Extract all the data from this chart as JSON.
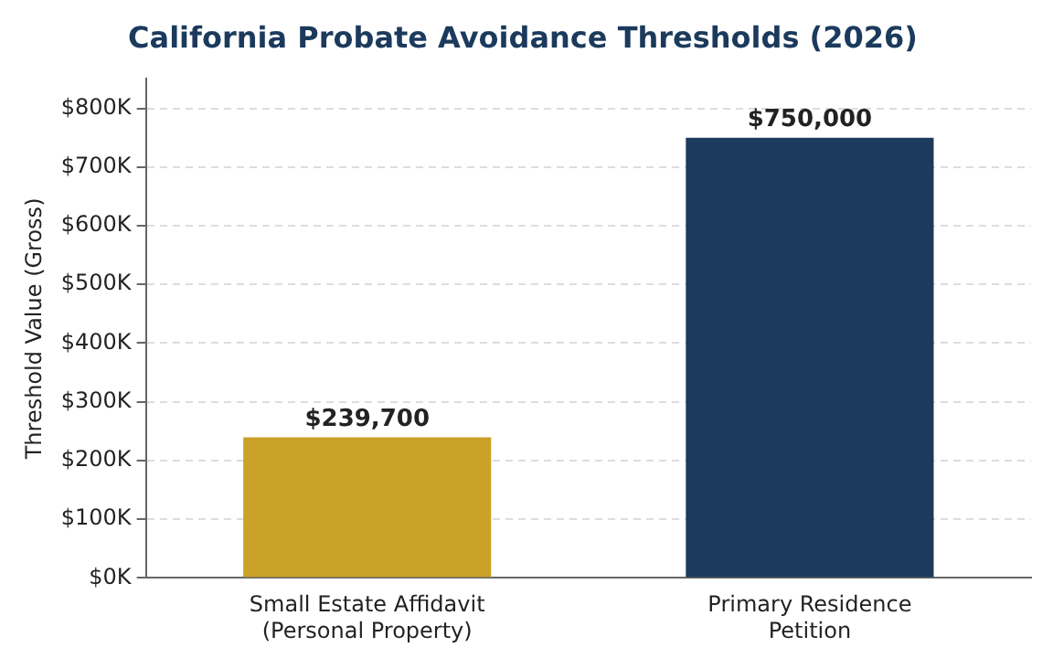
{
  "chart_data": {
    "type": "bar",
    "title": "California Probate Avoidance Thresholds (2026)",
    "ylabel": "Threshold Value (Gross)",
    "categories": [
      "Small Estate Affidavit\n(Personal Property)",
      "Primary Residence\nPetition"
    ],
    "values": [
      239700,
      750000
    ],
    "colors": [
      "#c9a227",
      "#1b3a5c"
    ],
    "value_labels": [
      "$239,700",
      "$750,000"
    ],
    "ylim": [
      0,
      850000
    ],
    "yticks": [
      {
        "value": 0,
        "label": "$0K"
      },
      {
        "value": 100000,
        "label": "$100K"
      },
      {
        "value": 200000,
        "label": "$200K"
      },
      {
        "value": 300000,
        "label": "$300K"
      },
      {
        "value": 400000,
        "label": "$400K"
      },
      {
        "value": 500000,
        "label": "$500K"
      },
      {
        "value": 600000,
        "label": "$600K"
      },
      {
        "value": 700000,
        "label": "$700K"
      },
      {
        "value": 800000,
        "label": "$800K"
      }
    ],
    "grid": "y"
  }
}
